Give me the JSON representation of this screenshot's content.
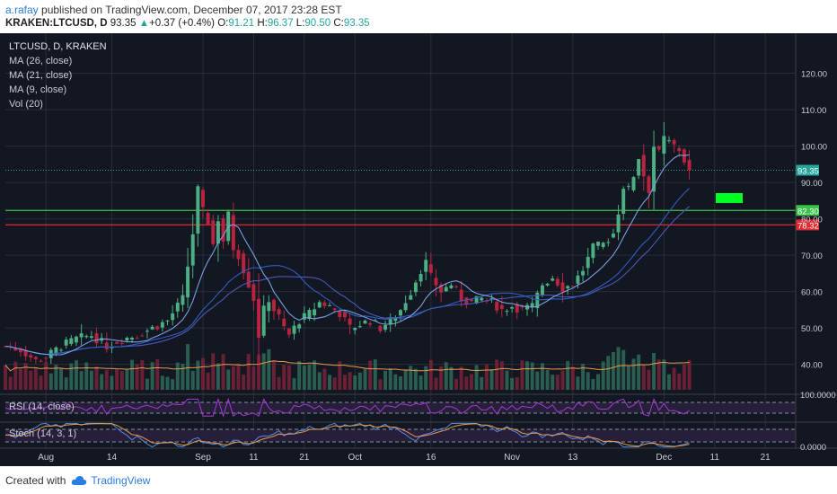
{
  "header": {
    "author": "a.rafay",
    "published": "published on TradingView.com, December 07, 2017 23:28 EST",
    "symbol": "KRAKEN:LTCUSD, D",
    "last": "93.35",
    "change": "+0.37 (+0.4%)",
    "o_label": "O:",
    "o": "91.21",
    "h_label": "H:",
    "h": "96.37",
    "l_label": "L:",
    "l": "90.50",
    "c_label": "C:",
    "c": "93.35"
  },
  "legend": {
    "title": "LTCUSD, D, KRAKEN",
    "items": [
      "MA (26, close)",
      "MA (21, close)",
      "MA (9, close)",
      "Vol (20)"
    ]
  },
  "rsi": {
    "label": "RSI (14, close)",
    "axis_label": "100.0000"
  },
  "stoch": {
    "label": "Stoch (14, 3, 1)",
    "axis_label": "0.0000"
  },
  "footer": {
    "created_with": "Created with",
    "brand": "TradingView"
  },
  "colors": {
    "background": "#131722",
    "grid": "#2a2e39",
    "up": "#4caf83",
    "down": "#b8243f",
    "ma26": "#4a59b5",
    "ma21": "#2f5ec2",
    "ma9": "#7aa0e0",
    "vol_ma": "#e89a4a",
    "support": "#39c34a",
    "resistance": "#e0282e",
    "last_price": "#26a69a",
    "rsi": "#a33ad6",
    "stoch_k": "#4f8ce6",
    "stoch_d": "#e89a4a"
  },
  "chart_data": {
    "type": "candlestick",
    "title": "LTCUSD, D, KRAKEN",
    "y_ticks": [
      "40.00",
      "50.00",
      "60.00",
      "70.00",
      "80.00",
      "90.00",
      "100.00",
      "110.00",
      "120.00"
    ],
    "ylim": [
      33,
      131
    ],
    "x_ticks": [
      {
        "label": "Aug",
        "day": 0
      },
      {
        "label": "14",
        "day": 13
      },
      {
        "label": "Sep",
        "day": 31
      },
      {
        "label": "11",
        "day": 41
      },
      {
        "label": "21",
        "day": 51
      },
      {
        "label": "Oct",
        "day": 61
      },
      {
        "label": "16",
        "day": 76
      },
      {
        "label": "Nov",
        "day": 92
      },
      {
        "label": "13",
        "day": 104
      },
      {
        "label": "Dec",
        "day": 122
      },
      {
        "label": "11",
        "day": 132
      },
      {
        "label": "21",
        "day": 142
      }
    ],
    "x_range_days": [
      -8,
      148
    ],
    "horizontal_levels": [
      {
        "value": 82.3,
        "label": "82.30",
        "color": "#39c34a"
      },
      {
        "value": 78.32,
        "label": "78.32",
        "color": "#e0282e"
      }
    ],
    "last_price": {
      "value": 93.35,
      "label": "93.35"
    },
    "close_waypoints": [
      [
        -8,
        45
      ],
      [
        -5,
        44
      ],
      [
        -2,
        41
      ],
      [
        0,
        42
      ],
      [
        3,
        45
      ],
      [
        6,
        47
      ],
      [
        9,
        48
      ],
      [
        12,
        45
      ],
      [
        15,
        47
      ],
      [
        18,
        48
      ],
      [
        21,
        50
      ],
      [
        24,
        52
      ],
      [
        27,
        58
      ],
      [
        28,
        67
      ],
      [
        29,
        76
      ],
      [
        30,
        88
      ],
      [
        31,
        82
      ],
      [
        32,
        79
      ],
      [
        33,
        73
      ],
      [
        34,
        80
      ],
      [
        35,
        74
      ],
      [
        36,
        81
      ],
      [
        37,
        72
      ],
      [
        38,
        70
      ],
      [
        39,
        66
      ],
      [
        40,
        62
      ],
      [
        41,
        58
      ],
      [
        42,
        48
      ],
      [
        43,
        55
      ],
      [
        44,
        58
      ],
      [
        45,
        55
      ],
      [
        46,
        53
      ],
      [
        47,
        50
      ],
      [
        48,
        48
      ],
      [
        50,
        52
      ],
      [
        52,
        54
      ],
      [
        54,
        57
      ],
      [
        56,
        56
      ],
      [
        58,
        54
      ],
      [
        60,
        50
      ],
      [
        62,
        51
      ],
      [
        64,
        52
      ],
      [
        66,
        50
      ],
      [
        68,
        52
      ],
      [
        70,
        55
      ],
      [
        72,
        60
      ],
      [
        74,
        66
      ],
      [
        75,
        68
      ],
      [
        76,
        64
      ],
      [
        78,
        60
      ],
      [
        80,
        62
      ],
      [
        82,
        58
      ],
      [
        84,
        57
      ],
      [
        86,
        58
      ],
      [
        88,
        57
      ],
      [
        90,
        55
      ],
      [
        92,
        56
      ],
      [
        94,
        55
      ],
      [
        96,
        56
      ],
      [
        98,
        62
      ],
      [
        100,
        64
      ],
      [
        102,
        61
      ],
      [
        104,
        62
      ],
      [
        106,
        66
      ],
      [
        108,
        72
      ],
      [
        110,
        73
      ],
      [
        112,
        76
      ],
      [
        113,
        82
      ],
      [
        114,
        89
      ],
      [
        115,
        88
      ],
      [
        116,
        92
      ],
      [
        117,
        97
      ],
      [
        118,
        92
      ],
      [
        119,
        88
      ],
      [
        120,
        100
      ],
      [
        121,
        98
      ],
      [
        122,
        102
      ],
      [
        123,
        101
      ],
      [
        124,
        100
      ],
      [
        125,
        99
      ],
      [
        126,
        96
      ],
      [
        127,
        93.35
      ]
    ],
    "volume_ma": 20,
    "rsi_range": [
      0,
      100
    ],
    "stoch_range": [
      0,
      100
    ]
  }
}
